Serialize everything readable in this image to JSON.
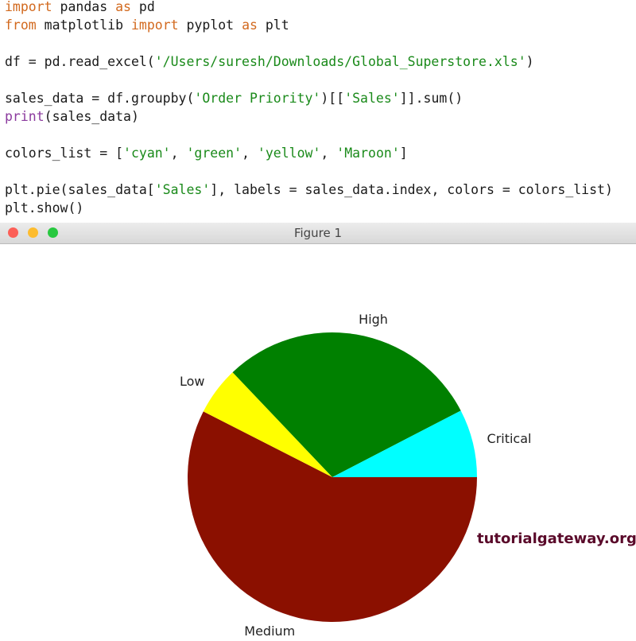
{
  "code": {
    "lines": [
      [
        {
          "text": "import",
          "color": "#d2691e"
        },
        {
          "text": " pandas ",
          "color": "#1a1a1a"
        },
        {
          "text": "as",
          "color": "#d2691e"
        },
        {
          "text": " pd",
          "color": "#1a1a1a"
        }
      ],
      [
        {
          "text": "from",
          "color": "#d2691e"
        },
        {
          "text": " matplotlib ",
          "color": "#1a1a1a"
        },
        {
          "text": "import",
          "color": "#d2691e"
        },
        {
          "text": " pyplot ",
          "color": "#1a1a1a"
        },
        {
          "text": "as",
          "color": "#d2691e"
        },
        {
          "text": " plt",
          "color": "#1a1a1a"
        }
      ],
      [
        {
          "text": "df = pd.read_excel(",
          "color": "#1a1a1a"
        },
        {
          "text": "'/Users/suresh/Downloads/Global_Superstore.xls'",
          "color": "#1a8a1a"
        },
        {
          "text": ")",
          "color": "#1a1a1a"
        }
      ],
      [
        {
          "text": "sales_data = df.groupby(",
          "color": "#1a1a1a"
        },
        {
          "text": "'Order Priority'",
          "color": "#1a8a1a"
        },
        {
          "text": ")[[",
          "color": "#1a1a1a"
        },
        {
          "text": "'Sales'",
          "color": "#1a8a1a"
        },
        {
          "text": "]].sum()",
          "color": "#1a1a1a"
        }
      ],
      [
        {
          "text": "print",
          "color": "#8b3a9e"
        },
        {
          "text": "(sales_data)",
          "color": "#1a1a1a"
        }
      ],
      [
        {
          "text": "colors_list = [",
          "color": "#1a1a1a"
        },
        {
          "text": "'cyan'",
          "color": "#1a8a1a"
        },
        {
          "text": ", ",
          "color": "#1a1a1a"
        },
        {
          "text": "'green'",
          "color": "#1a8a1a"
        },
        {
          "text": ", ",
          "color": "#1a1a1a"
        },
        {
          "text": "'yellow'",
          "color": "#1a8a1a"
        },
        {
          "text": ", ",
          "color": "#1a1a1a"
        },
        {
          "text": "'Maroon'",
          "color": "#1a8a1a"
        },
        {
          "text": "]",
          "color": "#1a1a1a"
        }
      ],
      [
        {
          "text": "plt.pie(sales_data[",
          "color": "#1a1a1a"
        },
        {
          "text": "'Sales'",
          "color": "#1a8a1a"
        },
        {
          "text": "], labels = sales_data.index, colors = colors_list)",
          "color": "#1a1a1a"
        }
      ],
      [
        {
          "text": "plt.show()",
          "color": "#1a1a1a"
        }
      ]
    ]
  },
  "window": {
    "title": "Figure 1"
  },
  "watermark": "tutorialgateway.org",
  "chart_data": {
    "type": "pie",
    "categories": [
      "Critical",
      "High",
      "Low",
      "Medium"
    ],
    "values": [
      7.6,
      29.5,
      5.4,
      57.5
    ],
    "colors": [
      "#00ffff",
      "#008000",
      "#ffff00",
      "#8b1000"
    ],
    "start_angle": 0
  }
}
